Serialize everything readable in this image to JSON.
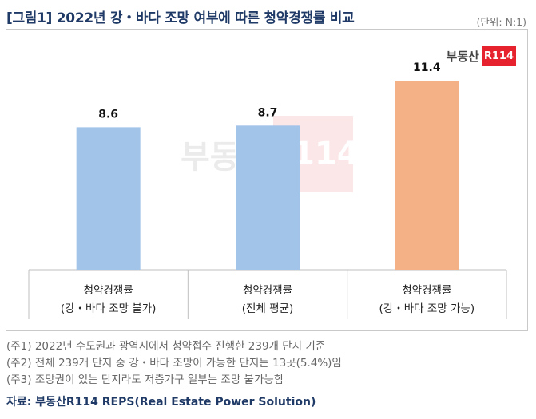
{
  "title": "[그림1] 2022년 강・바다 조망 여부에 따른 청약경쟁률 비교",
  "unit": "(단위: N:1)",
  "logo": {
    "text": "부동산",
    "badge": "R114"
  },
  "chart_data": {
    "type": "bar",
    "categories": [
      {
        "line1": "청약경쟁률",
        "line2": "(강・바다 조망 불가)"
      },
      {
        "line1": "청약경쟁률",
        "line2": "(전체 평균)"
      },
      {
        "line1": "청약경쟁률",
        "line2": "(강・바다 조망 가능)"
      }
    ],
    "values": [
      8.6,
      8.7,
      11.4
    ],
    "value_labels": [
      "8.6",
      "8.7",
      "11.4"
    ],
    "colors": [
      "#a3c4e9",
      "#a3c4e9",
      "#f3b185"
    ],
    "ylim": [
      0,
      13
    ],
    "grid": false,
    "legend": "none"
  },
  "notes": [
    "(주1) 2022년 수도권과 광역시에서 청약접수 진행한 239개 단지 기준",
    "(주2) 전체 239개 단지 중 강・바다 조망이 가능한 단지는 13곳(5.4%)임",
    "(주3) 조망권이 있는 단지라도 저층가구 일부는 조망 불가능함"
  ],
  "source": "자료: 부동산R114 REPS(Real Estate Power Solution)"
}
